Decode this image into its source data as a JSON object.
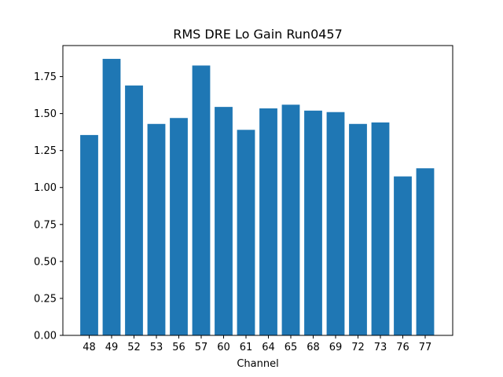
{
  "chart_data": {
    "type": "bar",
    "title": "RMS DRE Lo Gain Run0457",
    "xlabel": "Channel",
    "ylabel": "",
    "categories": [
      "48",
      "49",
      "52",
      "53",
      "56",
      "57",
      "60",
      "61",
      "64",
      "65",
      "68",
      "69",
      "72",
      "73",
      "76",
      "77"
    ],
    "values": [
      1.355,
      1.87,
      1.69,
      1.43,
      1.47,
      1.825,
      1.545,
      1.39,
      1.535,
      1.56,
      1.52,
      1.51,
      1.43,
      1.44,
      1.075,
      1.13
    ],
    "ylim": [
      0,
      1.96
    ],
    "yticks": [
      "0.00",
      "0.25",
      "0.50",
      "0.75",
      "1.00",
      "1.25",
      "1.50",
      "1.75"
    ],
    "bar_color": "#1f77b4",
    "grid": false,
    "legend": "none"
  }
}
